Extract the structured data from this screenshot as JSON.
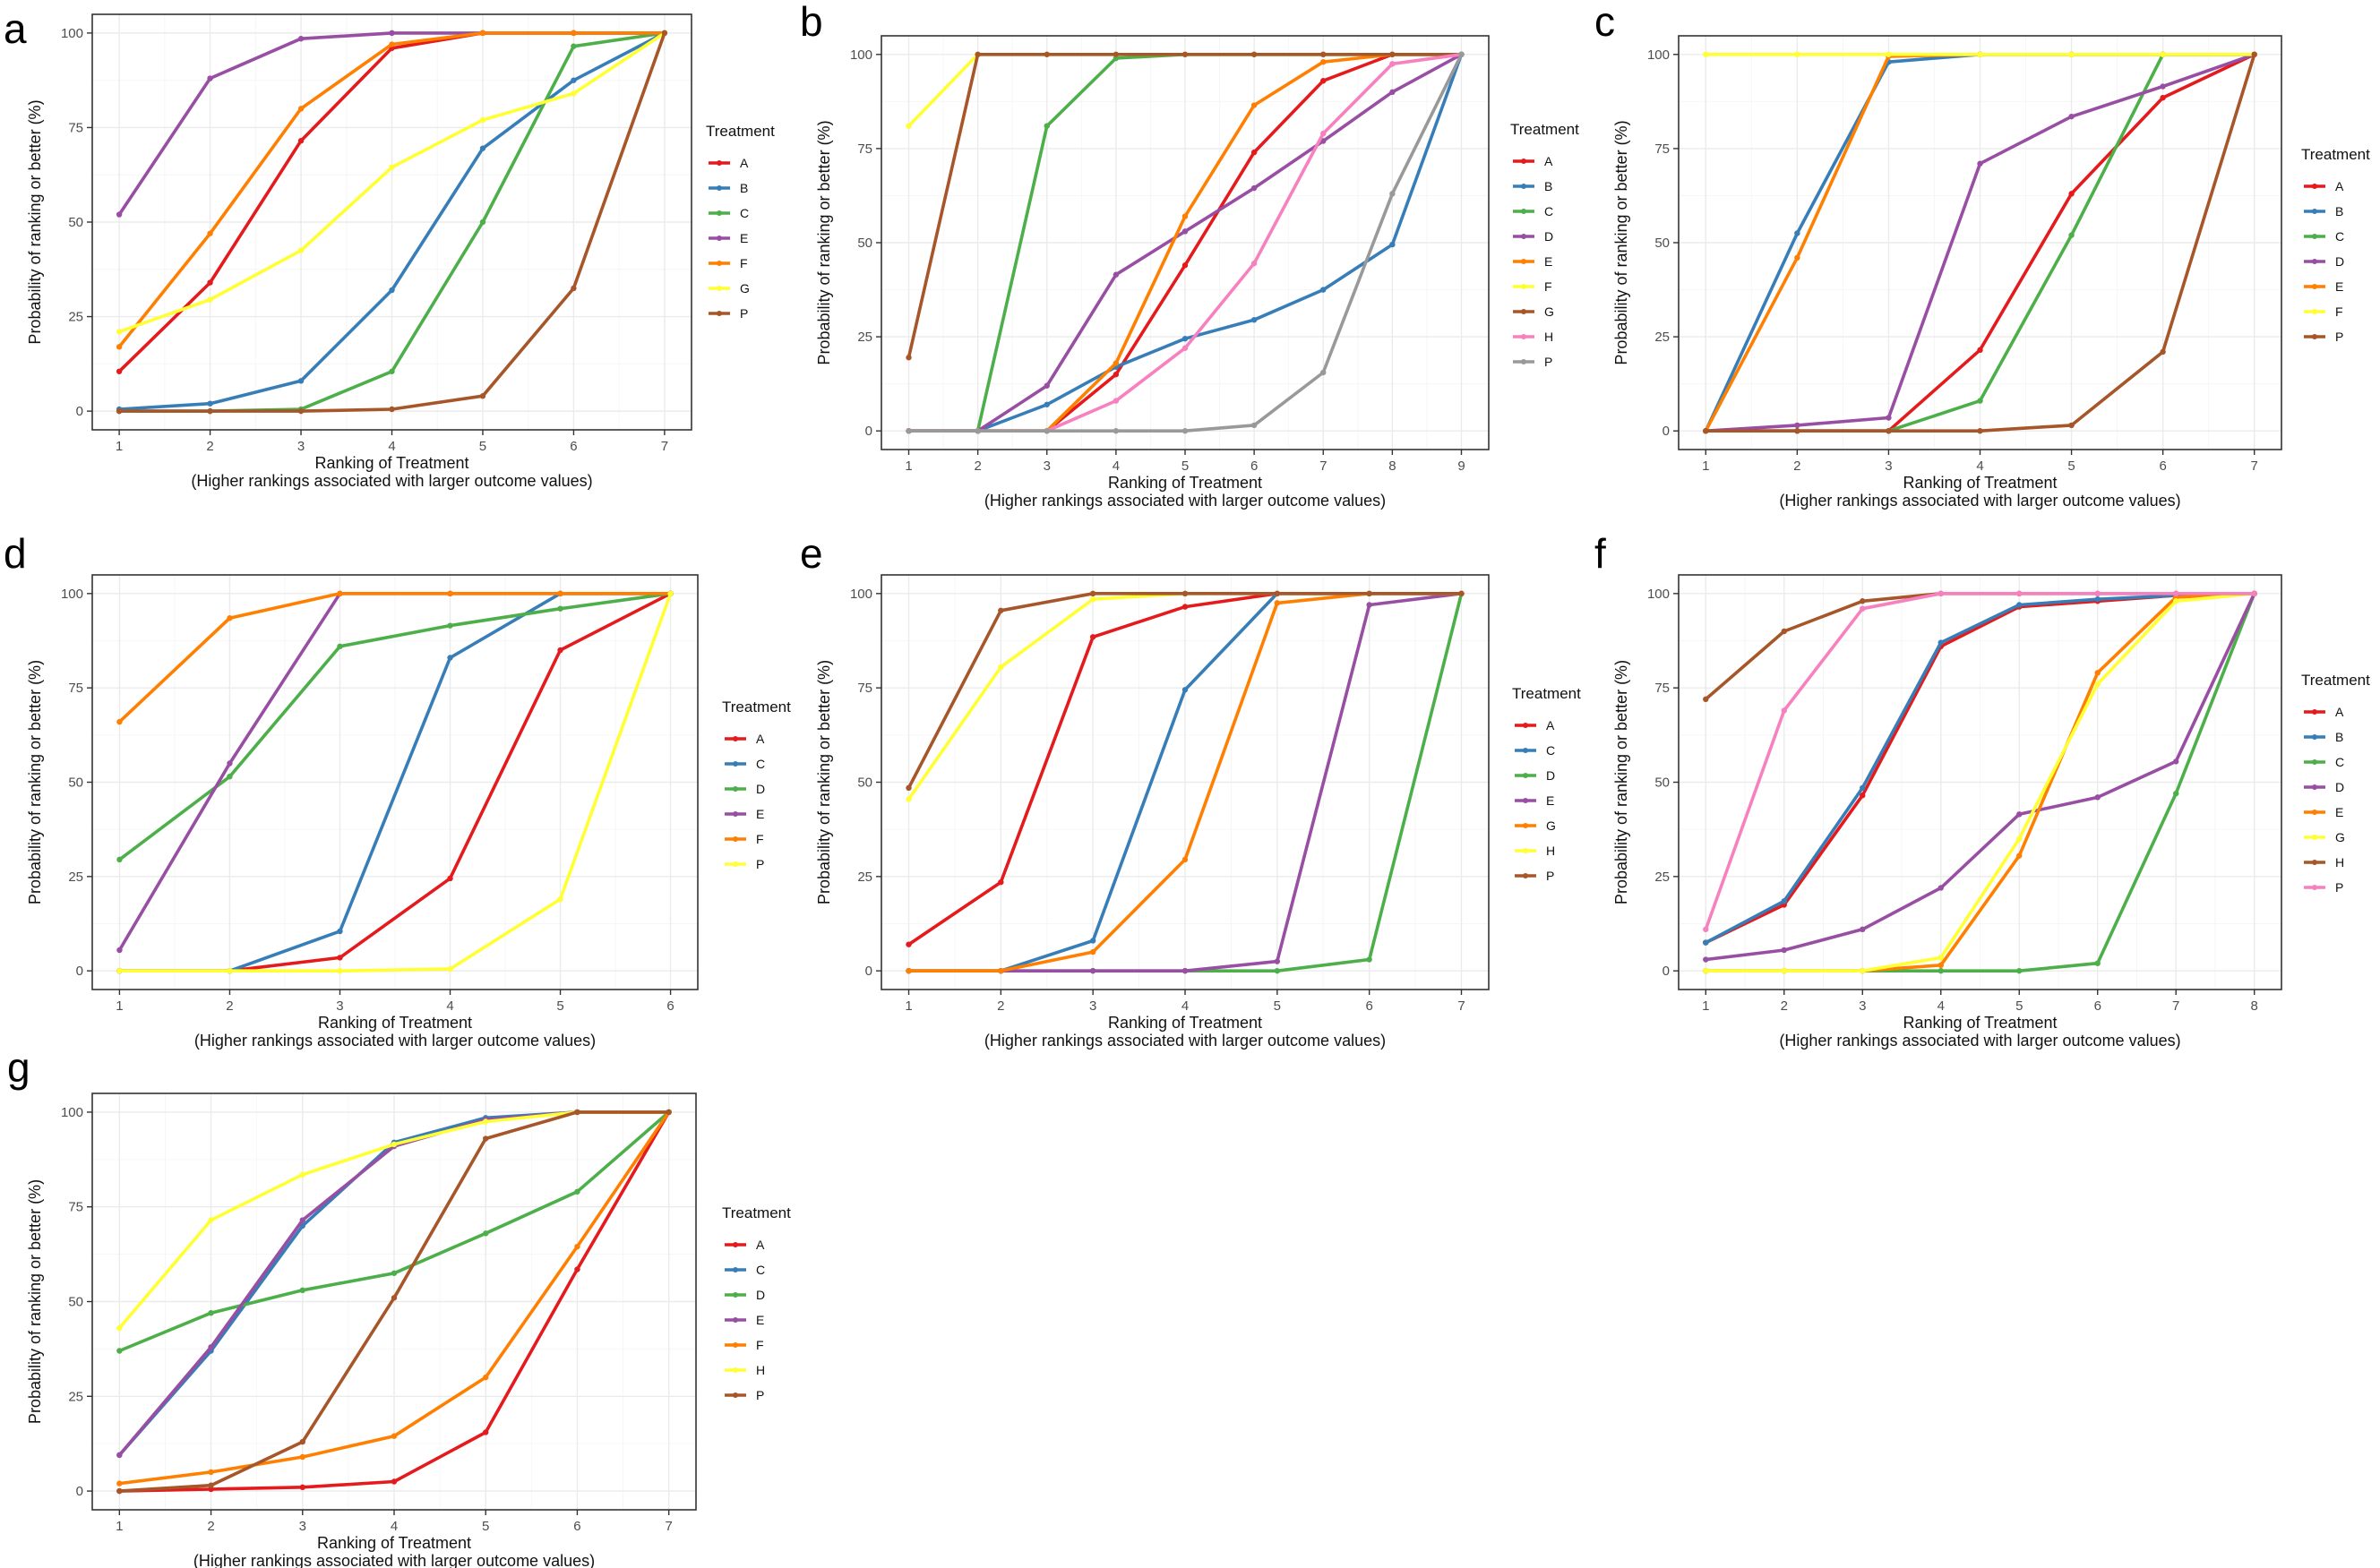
{
  "figure": {
    "panel_letters": [
      "a",
      "b",
      "c",
      "d",
      "e",
      "f",
      "g"
    ]
  },
  "chart_data": [
    {
      "panel": "a",
      "type": "line",
      "xlabel": "Ranking of Treatment",
      "xlabel_sub": "(Higher rankings associated with larger outcome values)",
      "ylabel": "Probability of ranking or better (%)",
      "x": [
        1,
        2,
        3,
        4,
        5,
        6,
        7
      ],
      "xlim": [
        1,
        7
      ],
      "ylim": [
        0,
        100
      ],
      "yticks": [
        0,
        25,
        50,
        75,
        100
      ],
      "legend_title": "Treatment",
      "series": [
        {
          "name": "A",
          "color": "#E41A1C",
          "values": [
            10.5,
            34,
            71.5,
            96,
            100,
            100,
            100
          ]
        },
        {
          "name": "B",
          "color": "#377EB8",
          "values": [
            0.5,
            2,
            8,
            32,
            69.5,
            87.5,
            100
          ]
        },
        {
          "name": "C",
          "color": "#4DAF4A",
          "values": [
            0,
            0,
            0.5,
            10.5,
            50,
            96.5,
            100
          ]
        },
        {
          "name": "E",
          "color": "#984EA3",
          "values": [
            52,
            88,
            98.5,
            100,
            100,
            100,
            100
          ]
        },
        {
          "name": "F",
          "color": "#FF7F00",
          "values": [
            17,
            47,
            80,
            97,
            100,
            100,
            100
          ]
        },
        {
          "name": "G",
          "color": "#FFFF33",
          "values": [
            21,
            29.5,
            42.5,
            64.5,
            77,
            84,
            100
          ]
        },
        {
          "name": "P",
          "color": "#A65628",
          "values": [
            0,
            0,
            0,
            0.5,
            4,
            32.5,
            100
          ]
        }
      ]
    },
    {
      "panel": "b",
      "type": "line",
      "xlabel": "Ranking of Treatment",
      "xlabel_sub": "(Higher rankings associated with larger outcome values)",
      "ylabel": "Probability of ranking or better (%)",
      "x": [
        1,
        2,
        3,
        4,
        5,
        6,
        7,
        8,
        9
      ],
      "xlim": [
        1,
        9
      ],
      "ylim": [
        0,
        100
      ],
      "yticks": [
        0,
        25,
        50,
        75,
        100
      ],
      "legend_title": "Treatment",
      "series": [
        {
          "name": "A",
          "color": "#E41A1C",
          "values": [
            0,
            0,
            0,
            15,
            44,
            74,
            93,
            100,
            100
          ]
        },
        {
          "name": "B",
          "color": "#377EB8",
          "values": [
            0,
            0,
            7,
            17,
            24.5,
            29.5,
            37.5,
            49.5,
            100
          ]
        },
        {
          "name": "C",
          "color": "#4DAF4A",
          "values": [
            0,
            0,
            81,
            99,
            100,
            100,
            100,
            100,
            100
          ]
        },
        {
          "name": "D",
          "color": "#984EA3",
          "values": [
            0,
            0,
            12,
            41.5,
            53,
            64.5,
            77,
            90,
            100
          ]
        },
        {
          "name": "E",
          "color": "#FF7F00",
          "values": [
            0,
            0,
            0,
            18,
            57,
            86.5,
            98,
            100,
            100
          ]
        },
        {
          "name": "F",
          "color": "#FFFF33",
          "values": [
            81,
            100,
            100,
            100,
            100,
            100,
            100,
            100,
            100
          ]
        },
        {
          "name": "G",
          "color": "#A65628",
          "values": [
            19.5,
            100,
            100,
            100,
            100,
            100,
            100,
            100,
            100
          ]
        },
        {
          "name": "H",
          "color": "#F781BF",
          "values": [
            0,
            0,
            0,
            8,
            22,
            44.5,
            79,
            97.5,
            100
          ]
        },
        {
          "name": "P",
          "color": "#999999",
          "values": [
            0,
            0,
            0,
            0,
            0,
            1.5,
            15.5,
            63,
            100
          ]
        }
      ]
    },
    {
      "panel": "c",
      "type": "line",
      "xlabel": "Ranking of Treatment",
      "xlabel_sub": "(Higher rankings associated with larger outcome values)",
      "ylabel": "Probability of ranking or better (%)",
      "x": [
        1,
        2,
        3,
        4,
        5,
        6,
        7
      ],
      "xlim": [
        1,
        7
      ],
      "ylim": [
        0,
        100
      ],
      "yticks": [
        0,
        25,
        50,
        75,
        100
      ],
      "legend_title": "Treatment",
      "series": [
        {
          "name": "A",
          "color": "#E41A1C",
          "values": [
            0,
            0,
            0,
            21.5,
            63,
            88.5,
            100
          ]
        },
        {
          "name": "B",
          "color": "#377EB8",
          "values": [
            0,
            52.5,
            98,
            100,
            100,
            100,
            100
          ]
        },
        {
          "name": "C",
          "color": "#4DAF4A",
          "values": [
            0,
            0,
            0,
            8,
            52,
            100,
            100
          ]
        },
        {
          "name": "D",
          "color": "#984EA3",
          "values": [
            0,
            1.5,
            3.5,
            71,
            83.5,
            91.5,
            100
          ]
        },
        {
          "name": "E",
          "color": "#FF7F00",
          "values": [
            0,
            46,
            99.5,
            100,
            100,
            100,
            100
          ]
        },
        {
          "name": "F",
          "color": "#FFFF33",
          "values": [
            100,
            100,
            100,
            100,
            100,
            100,
            100
          ]
        },
        {
          "name": "P",
          "color": "#A65628",
          "values": [
            0,
            0,
            0,
            0,
            1.5,
            21,
            100
          ]
        }
      ]
    },
    {
      "panel": "d",
      "type": "line",
      "xlabel": "Ranking of Treatment",
      "xlabel_sub": "(Higher rankings associated with larger outcome values)",
      "ylabel": "Probability of ranking or better (%)",
      "x": [
        1,
        2,
        3,
        4,
        5,
        6
      ],
      "xlim": [
        1,
        6
      ],
      "ylim": [
        0,
        100
      ],
      "yticks": [
        0,
        25,
        50,
        75,
        100
      ],
      "legend_title": "Treatment",
      "series": [
        {
          "name": "A",
          "color": "#E41A1C",
          "values": [
            0,
            0,
            3.5,
            24.5,
            85,
            100
          ]
        },
        {
          "name": "C",
          "color": "#377EB8",
          "values": [
            0,
            0,
            10.5,
            83,
            100,
            100
          ]
        },
        {
          "name": "D",
          "color": "#4DAF4A",
          "values": [
            29.5,
            51.5,
            86,
            91.5,
            96,
            100
          ]
        },
        {
          "name": "E",
          "color": "#984EA3",
          "values": [
            5.5,
            55,
            100,
            100,
            100,
            100
          ]
        },
        {
          "name": "F",
          "color": "#FF7F00",
          "values": [
            66,
            93.5,
            100,
            100,
            100,
            100
          ]
        },
        {
          "name": "P",
          "color": "#FFFF33",
          "values": [
            0,
            0,
            0,
            0.5,
            19,
            100
          ]
        }
      ]
    },
    {
      "panel": "e",
      "type": "line",
      "xlabel": "Ranking of Treatment",
      "xlabel_sub": "(Higher rankings associated with larger outcome values)",
      "ylabel": "Probability of ranking or better (%)",
      "x": [
        1,
        2,
        3,
        4,
        5,
        6,
        7
      ],
      "xlim": [
        1,
        7
      ],
      "ylim": [
        0,
        100
      ],
      "yticks": [
        0,
        25,
        50,
        75,
        100
      ],
      "legend_title": "Treatment",
      "series": [
        {
          "name": "A",
          "color": "#E41A1C",
          "values": [
            7,
            23.5,
            88.5,
            96.5,
            100,
            100,
            100
          ]
        },
        {
          "name": "C",
          "color": "#377EB8",
          "values": [
            0,
            0,
            8,
            74.5,
            100,
            100,
            100
          ]
        },
        {
          "name": "D",
          "color": "#4DAF4A",
          "values": [
            0,
            0,
            0,
            0,
            0,
            3,
            100
          ]
        },
        {
          "name": "E",
          "color": "#984EA3",
          "values": [
            0,
            0,
            0,
            0,
            2.5,
            97,
            100
          ]
        },
        {
          "name": "G",
          "color": "#FF7F00",
          "values": [
            0,
            0,
            5,
            29.5,
            97.5,
            100,
            100
          ]
        },
        {
          "name": "H",
          "color": "#FFFF33",
          "values": [
            45.5,
            80.5,
            98.5,
            100,
            100,
            100,
            100
          ]
        },
        {
          "name": "P",
          "color": "#A65628",
          "values": [
            48.5,
            95.5,
            100,
            100,
            100,
            100,
            100
          ]
        }
      ]
    },
    {
      "panel": "f",
      "type": "line",
      "xlabel": "Ranking of Treatment",
      "xlabel_sub": "(Higher rankings associated with larger outcome values)",
      "ylabel": "Probability of ranking or better (%)",
      "x": [
        1,
        2,
        3,
        4,
        5,
        6,
        7,
        8
      ],
      "xlim": [
        1,
        8
      ],
      "ylim": [
        0,
        100
      ],
      "yticks": [
        0,
        25,
        50,
        75,
        100
      ],
      "legend_title": "Treatment",
      "series": [
        {
          "name": "A",
          "color": "#E41A1C",
          "values": [
            7.5,
            17.5,
            46.5,
            86,
            96.5,
            98,
            99.5,
            100
          ]
        },
        {
          "name": "B",
          "color": "#377EB8",
          "values": [
            7.5,
            18.5,
            48.5,
            87,
            97,
            98.5,
            99.5,
            100
          ]
        },
        {
          "name": "C",
          "color": "#4DAF4A",
          "values": [
            0,
            0,
            0,
            0,
            0,
            2,
            47,
            100
          ]
        },
        {
          "name": "D",
          "color": "#984EA3",
          "values": [
            3,
            5.5,
            11,
            22,
            41.5,
            46,
            55.5,
            100
          ]
        },
        {
          "name": "E",
          "color": "#FF7F00",
          "values": [
            0,
            0,
            0,
            1.5,
            30.5,
            79,
            99,
            100
          ]
        },
        {
          "name": "G",
          "color": "#FFFF33",
          "values": [
            0,
            0,
            0,
            3.5,
            35,
            76,
            98,
            100
          ]
        },
        {
          "name": "H",
          "color": "#A65628",
          "values": [
            72,
            90,
            98,
            100,
            100,
            100,
            100,
            100
          ]
        },
        {
          "name": "P",
          "color": "#F781BF",
          "values": [
            11,
            69,
            96,
            100,
            100,
            100,
            100,
            100
          ]
        }
      ]
    },
    {
      "panel": "g",
      "type": "line",
      "xlabel": "Ranking of Treatment",
      "xlabel_sub": "(Higher rankings associated with larger outcome values)",
      "ylabel": "Probability of ranking or better (%)",
      "x": [
        1,
        2,
        3,
        4,
        5,
        6,
        7
      ],
      "xlim": [
        1,
        7
      ],
      "ylim": [
        0,
        100
      ],
      "yticks": [
        0,
        25,
        50,
        75,
        100
      ],
      "legend_title": "Treatment",
      "series": [
        {
          "name": "A",
          "color": "#E41A1C",
          "values": [
            0,
            0.5,
            1,
            2.5,
            15.5,
            58.5,
            100
          ]
        },
        {
          "name": "C",
          "color": "#377EB8",
          "values": [
            9.5,
            37,
            70,
            92,
            98.5,
            100,
            100
          ]
        },
        {
          "name": "D",
          "color": "#4DAF4A",
          "values": [
            37,
            47,
            53,
            57.5,
            68,
            79,
            100
          ]
        },
        {
          "name": "E",
          "color": "#984EA3",
          "values": [
            9.5,
            38,
            71.5,
            91,
            98,
            100,
            100
          ]
        },
        {
          "name": "F",
          "color": "#FF7F00",
          "values": [
            2,
            5,
            9,
            14.5,
            30,
            64.5,
            100
          ]
        },
        {
          "name": "H",
          "color": "#FFFF33",
          "values": [
            43,
            71.5,
            83.5,
            91.5,
            97.5,
            100,
            100
          ]
        },
        {
          "name": "P",
          "color": "#A65628",
          "values": [
            0,
            1.5,
            13,
            51,
            93,
            100,
            100
          ]
        }
      ]
    }
  ]
}
